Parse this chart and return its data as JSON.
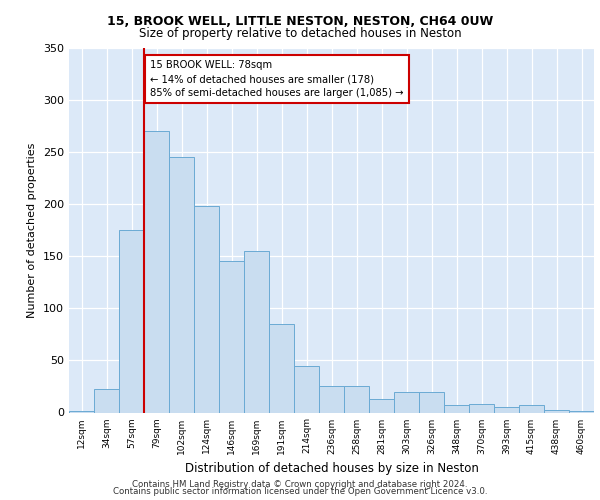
{
  "title1": "15, BROOK WELL, LITTLE NESTON, NESTON, CH64 0UW",
  "title2": "Size of property relative to detached houses in Neston",
  "xlabel": "Distribution of detached houses by size in Neston",
  "ylabel": "Number of detached properties",
  "categories": [
    "12sqm",
    "34sqm",
    "57sqm",
    "79sqm",
    "102sqm",
    "124sqm",
    "146sqm",
    "169sqm",
    "191sqm",
    "214sqm",
    "236sqm",
    "258sqm",
    "281sqm",
    "303sqm",
    "326sqm",
    "348sqm",
    "370sqm",
    "393sqm",
    "415sqm",
    "438sqm",
    "460sqm"
  ],
  "bar_values": [
    1,
    23,
    175,
    270,
    245,
    198,
    145,
    155,
    85,
    45,
    25,
    25,
    13,
    20,
    20,
    7,
    8,
    5,
    7,
    2,
    1
  ],
  "bar_color": "#c9ddf0",
  "bar_edge_color": "#6aaad4",
  "vline_color": "#cc0000",
  "annotation_text": "15 BROOK WELL: 78sqm\n← 14% of detached houses are smaller (178)\n85% of semi-detached houses are larger (1,085) →",
  "annotation_box_color": "#ffffff",
  "annotation_box_edge": "#cc0000",
  "plot_bg_color": "#dce9f8",
  "footer1": "Contains HM Land Registry data © Crown copyright and database right 2024.",
  "footer2": "Contains public sector information licensed under the Open Government Licence v3.0.",
  "ylim": [
    0,
    350
  ],
  "yticks": [
    0,
    50,
    100,
    150,
    200,
    250,
    300,
    350
  ],
  "vline_bin_index": 3
}
